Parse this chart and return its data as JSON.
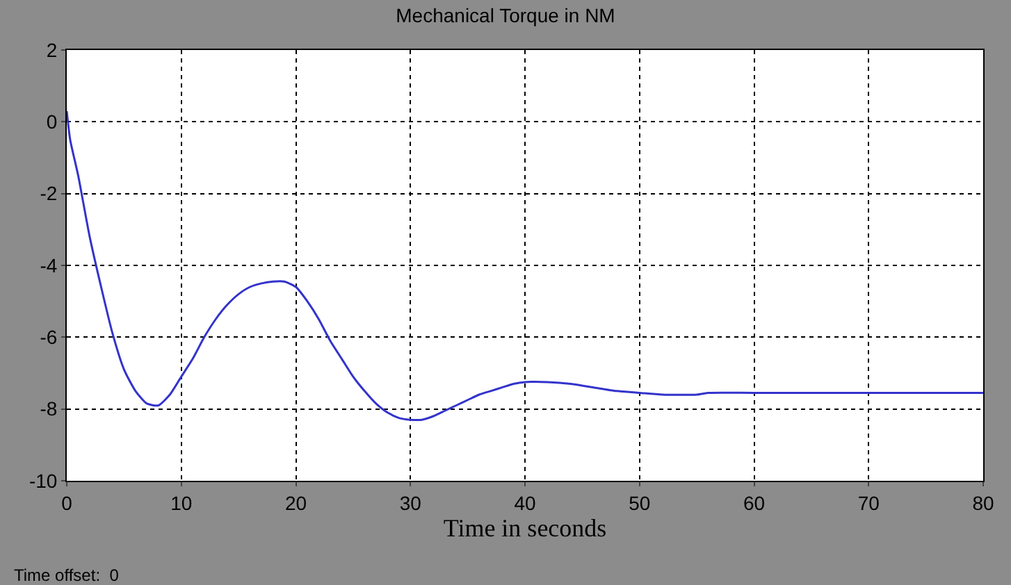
{
  "chart_data": {
    "type": "line",
    "title": "Mechanical Torque in NM",
    "xlabel": "Time in seconds",
    "annotations": [
      "Time offset:  0"
    ],
    "x": [
      0,
      0.3,
      1,
      2,
      3,
      4,
      5,
      6,
      7,
      8,
      9,
      10,
      11,
      12,
      13,
      14,
      15,
      16,
      17,
      18,
      19,
      20,
      21,
      22,
      23,
      24,
      25,
      26,
      27,
      28,
      29,
      30,
      31,
      32,
      33,
      34,
      35,
      36,
      37,
      38,
      39,
      40,
      42,
      44,
      46,
      48,
      50,
      52,
      55,
      56,
      60,
      70,
      80
    ],
    "series": [
      {
        "color": "#3333cc",
        "values": [
          0.3,
          -0.5,
          -1.5,
          -3.2,
          -4.6,
          -5.9,
          -6.9,
          -7.5,
          -7.85,
          -7.9,
          -7.6,
          -7.1,
          -6.6,
          -6.0,
          -5.5,
          -5.1,
          -4.8,
          -4.6,
          -4.5,
          -4.45,
          -4.45,
          -4.6,
          -5.0,
          -5.5,
          -6.1,
          -6.6,
          -7.1,
          -7.5,
          -7.85,
          -8.1,
          -8.25,
          -8.3,
          -8.3,
          -8.2,
          -8.05,
          -7.9,
          -7.75,
          -7.6,
          -7.5,
          -7.4,
          -7.3,
          -7.25,
          -7.25,
          -7.3,
          -7.4,
          -7.5,
          -7.55,
          -7.6,
          -7.6,
          -7.55,
          -7.55,
          -7.55,
          -7.55
        ]
      }
    ],
    "xlim": [
      0,
      80
    ],
    "xticks": [
      0,
      10,
      20,
      30,
      40,
      50,
      60,
      70,
      80
    ],
    "ylim": [
      -10,
      2
    ],
    "yticks": [
      -10,
      -8,
      -6,
      -4,
      -2,
      0,
      2
    ],
    "grid": true,
    "line_style": "solid",
    "marker": "none"
  }
}
